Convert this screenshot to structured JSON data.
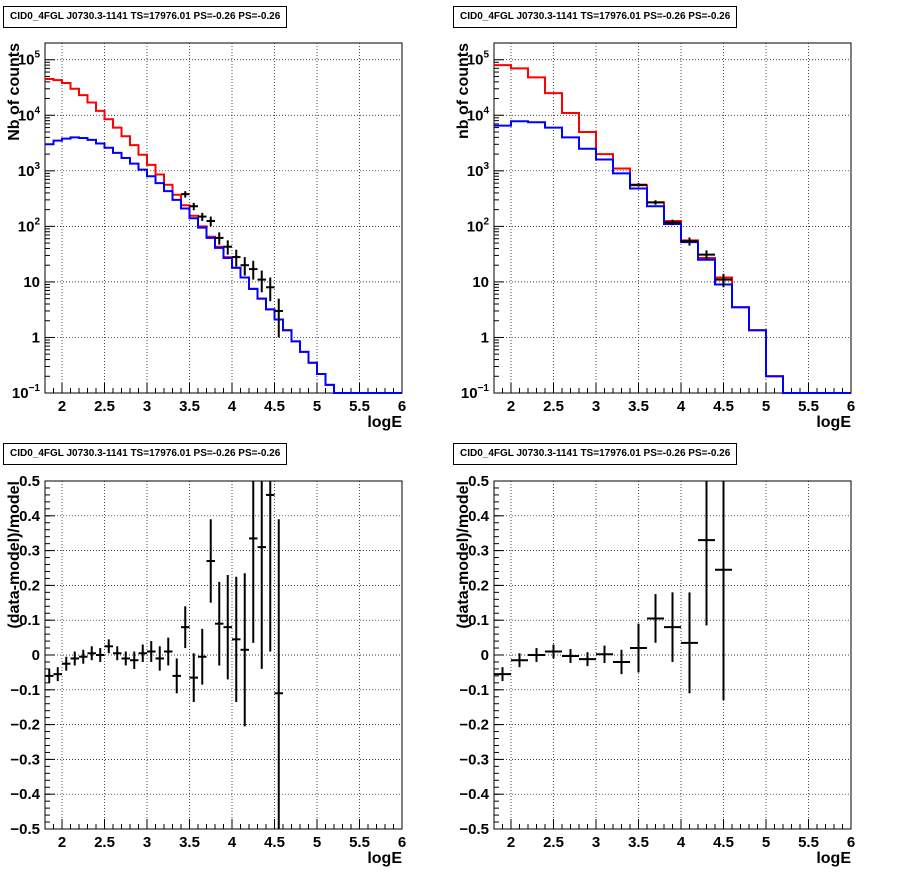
{
  "chart_data": [
    {
      "type": "step",
      "title": "CID0_4FGL J0730.3-1141 TS=17976.01 PS=-0.26 PS=-0.26",
      "xlabel": "logE",
      "ylabel": "Nb of counts",
      "xlim": [
        1.8,
        6.0
      ],
      "ylim": [
        0.1,
        200000
      ],
      "log_y": true,
      "grid": true,
      "x_ticks": [
        "2",
        "2.5",
        "3",
        "3.5",
        "4",
        "4.5",
        "5",
        "5.5",
        "6"
      ],
      "y_ticks": [
        "10^-1",
        "1",
        "10",
        "10^2",
        "10^3",
        "10^4",
        "10^5"
      ],
      "bin_edges": [
        1.8,
        1.9,
        2.0,
        2.1,
        2.2,
        2.3,
        2.4,
        2.5,
        2.6,
        2.7,
        2.8,
        2.9,
        3.0,
        3.1,
        3.2,
        3.3,
        3.4,
        3.5,
        3.6,
        3.7,
        3.8,
        3.9,
        4.0,
        4.1,
        4.2,
        4.3,
        4.4,
        4.5,
        4.6,
        4.7,
        4.8,
        4.9,
        5.0,
        5.1,
        5.2,
        5.3,
        5.4,
        5.5,
        5.6,
        5.7,
        5.8,
        5.9,
        6.0
      ],
      "series": [
        {
          "color": "#ff0000",
          "values": [
            45000,
            43000,
            38000,
            30000,
            23000,
            17000,
            12000,
            8500,
            6000,
            4200,
            2900,
            1950,
            1280,
            860,
            560,
            370,
            240,
            155,
            100,
            65,
            43,
            28,
            18,
            12,
            7.5,
            5,
            3.2,
            2.1,
            1.35,
            0.85,
            0.55,
            0.35,
            0.22,
            0.14,
            0.1,
            0.1,
            0.1,
            0.1,
            0.1,
            0.1,
            0.1,
            0.1
          ]
        },
        {
          "color": "#0000ff",
          "values": [
            3000,
            3500,
            3800,
            4000,
            3900,
            3600,
            3100,
            2600,
            2100,
            1700,
            1350,
            1050,
            800,
            600,
            430,
            300,
            210,
            140,
            95,
            62,
            41,
            27,
            18,
            12,
            7.5,
            5,
            3.2,
            2.1,
            1.35,
            0.85,
            0.55,
            0.35,
            0.22,
            0.14,
            0.1,
            0.1,
            0.1,
            0.1,
            0.1,
            0.1,
            0.1,
            0.1
          ]
        }
      ],
      "data_points": [
        {
          "x": 3.45,
          "y": 380,
          "lo": 330,
          "hi": 430
        },
        {
          "x": 3.55,
          "y": 230,
          "lo": 195,
          "hi": 265
        },
        {
          "x": 3.65,
          "y": 150,
          "lo": 125,
          "hi": 175
        },
        {
          "x": 3.75,
          "y": 125,
          "lo": 100,
          "hi": 150
        },
        {
          "x": 3.85,
          "y": 62,
          "lo": 47,
          "hi": 78
        },
        {
          "x": 3.95,
          "y": 43,
          "lo": 31,
          "hi": 56
        },
        {
          "x": 4.05,
          "y": 28,
          "lo": 19,
          "hi": 38
        },
        {
          "x": 4.15,
          "y": 20,
          "lo": 13,
          "hi": 28
        },
        {
          "x": 4.25,
          "y": 17,
          "lo": 11,
          "hi": 24
        },
        {
          "x": 4.35,
          "y": 11,
          "lo": 6.5,
          "hi": 16
        },
        {
          "x": 4.45,
          "y": 8,
          "lo": 4.5,
          "hi": 12
        },
        {
          "x": 4.55,
          "y": 3,
          "lo": 1,
          "hi": 5
        }
      ]
    },
    {
      "type": "step",
      "title": "CID0_4FGL J0730.3-1141 TS=17976.01 PS=-0.26 PS=-0.26",
      "xlabel": "logE",
      "ylabel": "nb of counts",
      "xlim": [
        1.8,
        6.0
      ],
      "ylim": [
        0.1,
        200000
      ],
      "log_y": true,
      "grid": true,
      "x_ticks": [
        "2",
        "2.5",
        "3",
        "3.5",
        "4",
        "4.5",
        "5",
        "5.5",
        "6"
      ],
      "y_ticks": [
        "10^-1",
        "1",
        "10",
        "10^2",
        "10^3",
        "10^4",
        "10^5"
      ],
      "bin_edges": [
        1.8,
        2.0,
        2.2,
        2.4,
        2.6,
        2.8,
        3.0,
        3.2,
        3.4,
        3.6,
        3.8,
        4.0,
        4.2,
        4.4,
        4.6,
        4.8,
        5.0,
        5.2,
        5.4,
        5.6,
        5.8,
        6.0
      ],
      "series": [
        {
          "color": "#ff0000",
          "values": [
            80000,
            70000,
            48000,
            25000,
            11000,
            5000,
            2000,
            1100,
            550,
            270,
            125,
            56,
            27,
            12,
            3.5,
            1.35,
            0.2,
            0.1,
            0.1,
            0.1,
            0.1
          ]
        },
        {
          "color": "#0000ff",
          "values": [
            6500,
            7800,
            7500,
            6000,
            4000,
            2500,
            1600,
            900,
            480,
            230,
            110,
            52,
            25,
            9,
            3.5,
            1.35,
            0.2,
            0.1,
            0.1,
            0.1,
            0.1
          ]
        }
      ],
      "data_points": [
        {
          "x": 3.5,
          "y": 560,
          "lo": 520,
          "hi": 600
        },
        {
          "x": 3.7,
          "y": 270,
          "lo": 245,
          "hi": 295
        },
        {
          "x": 3.9,
          "y": 118,
          "lo": 105,
          "hi": 132
        },
        {
          "x": 4.1,
          "y": 54,
          "lo": 45,
          "hi": 63
        },
        {
          "x": 4.3,
          "y": 31,
          "lo": 25,
          "hi": 37
        },
        {
          "x": 4.5,
          "y": 11,
          "lo": 8,
          "hi": 14
        }
      ]
    },
    {
      "type": "errorbar",
      "title": "CID0_4FGL J0730.3-1141 TS=17976.01 PS=-0.26 PS=-0.26",
      "xlabel": "logE",
      "ylabel": "(data-model)/model",
      "xlim": [
        1.8,
        6.0
      ],
      "ylim": [
        -0.5,
        0.5
      ],
      "grid": true,
      "x_ticks": [
        "2",
        "2.5",
        "3",
        "3.5",
        "4",
        "4.5",
        "5",
        "5.5",
        "6"
      ],
      "y_ticks": [
        "-0.5",
        "-0.4",
        "-0.3",
        "-0.2",
        "-0.1",
        "0",
        "0.1",
        "0.2",
        "0.3",
        "0.4",
        "0.5"
      ],
      "bin_halfwidth": 0.05,
      "points": [
        {
          "x": 1.85,
          "y": -0.06,
          "err": 0.02
        },
        {
          "x": 1.95,
          "y": -0.055,
          "err": 0.02
        },
        {
          "x": 2.05,
          "y": -0.025,
          "err": 0.02
        },
        {
          "x": 2.15,
          "y": -0.01,
          "err": 0.02
        },
        {
          "x": 2.25,
          "y": -0.005,
          "err": 0.02
        },
        {
          "x": 2.35,
          "y": 0.005,
          "err": 0.02
        },
        {
          "x": 2.45,
          "y": 0.0,
          "err": 0.02
        },
        {
          "x": 2.55,
          "y": 0.025,
          "err": 0.02
        },
        {
          "x": 2.65,
          "y": 0.005,
          "err": 0.02
        },
        {
          "x": 2.75,
          "y": -0.01,
          "err": 0.02
        },
        {
          "x": 2.85,
          "y": -0.015,
          "err": 0.025
        },
        {
          "x": 2.95,
          "y": 0.005,
          "err": 0.025
        },
        {
          "x": 3.05,
          "y": 0.01,
          "err": 0.03
        },
        {
          "x": 3.15,
          "y": -0.01,
          "err": 0.035
        },
        {
          "x": 3.25,
          "y": 0.01,
          "err": 0.04
        },
        {
          "x": 3.35,
          "y": -0.06,
          "err": 0.05
        },
        {
          "x": 3.45,
          "y": 0.08,
          "err": 0.06
        },
        {
          "x": 3.55,
          "y": -0.065,
          "err": 0.07
        },
        {
          "x": 3.65,
          "y": -0.005,
          "err": 0.08
        },
        {
          "x": 3.75,
          "y": 0.27,
          "err": 0.12
        },
        {
          "x": 3.85,
          "y": 0.09,
          "err": 0.12
        },
        {
          "x": 3.95,
          "y": 0.08,
          "err": 0.15
        },
        {
          "x": 4.05,
          "y": 0.045,
          "err": 0.18
        },
        {
          "x": 4.15,
          "y": 0.015,
          "err": 0.22
        },
        {
          "x": 4.25,
          "y": 0.335,
          "err": 0.3
        },
        {
          "x": 4.35,
          "y": 0.31,
          "err": 0.35
        },
        {
          "x": 4.45,
          "y": 0.46,
          "err": 0.45
        },
        {
          "x": 4.55,
          "y": -0.11,
          "err": 0.5
        }
      ]
    },
    {
      "type": "errorbar",
      "title": "CID0_4FGL J0730.3-1141 TS=17976.01 PS=-0.26 PS=-0.26",
      "xlabel": "logE",
      "ylabel": "(data-model)/model",
      "xlim": [
        1.8,
        6.0
      ],
      "ylim": [
        -0.5,
        0.5
      ],
      "grid": true,
      "x_ticks": [
        "2",
        "2.5",
        "3",
        "3.5",
        "4",
        "4.5",
        "5",
        "5.5",
        "6"
      ],
      "y_ticks": [
        "-0.5",
        "-0.4",
        "-0.3",
        "-0.2",
        "-0.1",
        "0",
        "0.1",
        "0.2",
        "0.3",
        "0.4",
        "0.5"
      ],
      "bin_halfwidth": 0.1,
      "points": [
        {
          "x": 1.9,
          "y": -0.055,
          "err": 0.02
        },
        {
          "x": 2.1,
          "y": -0.015,
          "err": 0.02
        },
        {
          "x": 2.3,
          "y": 0.0,
          "err": 0.02
        },
        {
          "x": 2.5,
          "y": 0.01,
          "err": 0.02
        },
        {
          "x": 2.7,
          "y": -0.003,
          "err": 0.02
        },
        {
          "x": 2.9,
          "y": -0.012,
          "err": 0.02
        },
        {
          "x": 3.1,
          "y": 0.002,
          "err": 0.025
        },
        {
          "x": 3.3,
          "y": -0.02,
          "err": 0.035
        },
        {
          "x": 3.5,
          "y": 0.02,
          "err": 0.07
        },
        {
          "x": 3.7,
          "y": 0.105,
          "err": 0.07
        },
        {
          "x": 3.9,
          "y": 0.08,
          "err": 0.1
        },
        {
          "x": 4.1,
          "y": 0.035,
          "err": 0.145
        },
        {
          "x": 4.3,
          "y": 0.33,
          "err": 0.245
        },
        {
          "x": 4.5,
          "y": 0.245,
          "err": 0.375
        }
      ]
    }
  ]
}
